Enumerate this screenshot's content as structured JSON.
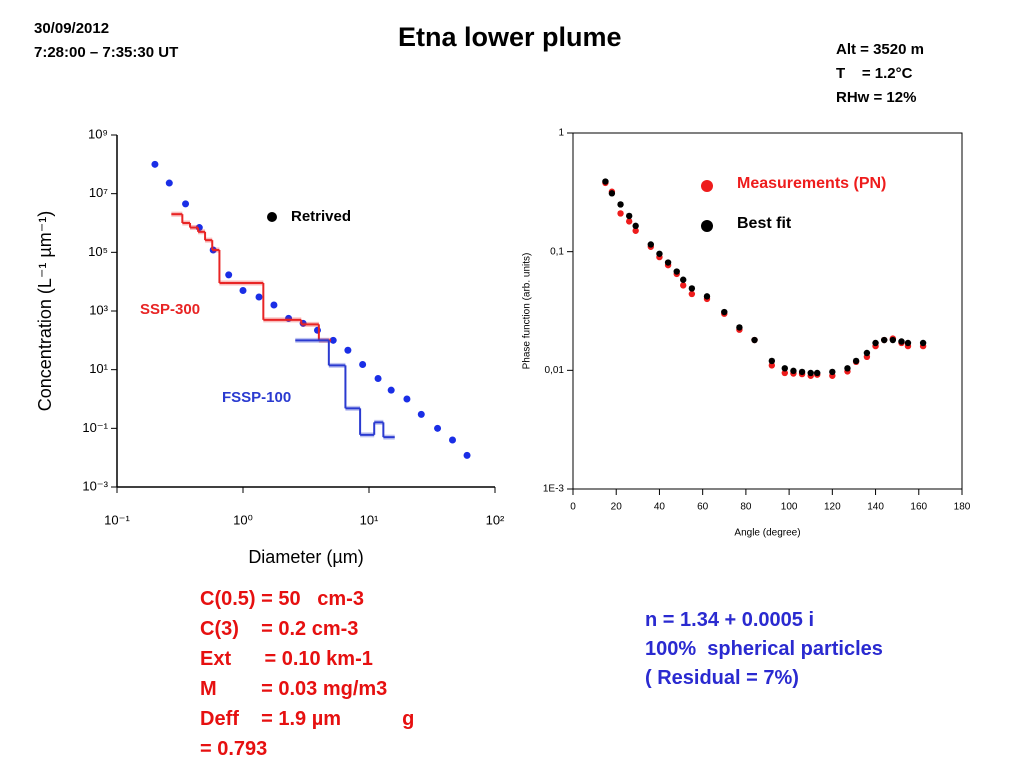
{
  "header": {
    "date": "30/09/2012",
    "time": "7:28:00 – 7:35:30 UT",
    "title": "Etna lower plume",
    "conditions": [
      "Alt = 3520 m",
      "T    = 1.2°C",
      "RHw = 12%"
    ]
  },
  "results_left": [
    "C(0.5) = 50   cm-3",
    "C(3)    = 0.2 cm-3",
    "Ext      = 0.10 km-1",
    "M        = 0.03 mg/m3",
    "Deff    = 1.9 µm           g",
    "= 0.793"
  ],
  "results_right": [
    "n = 1.34 + 0.0005 i",
    "100%  spherical particles",
    "( Residual = 7%)"
  ],
  "chart_data": [
    {
      "type": "scatter",
      "xlog": true,
      "ylog": true,
      "xlabel": "Diameter (µm)",
      "ylabel": "Concentration (L⁻¹ µm⁻¹)",
      "xlim": [
        0.1,
        100
      ],
      "ylim": [
        0.001,
        1000000000
      ],
      "xticks": [
        {
          "value": 0.1,
          "label": "10⁻¹"
        },
        {
          "value": 1,
          "label": "10⁰"
        },
        {
          "value": 10,
          "label": "10¹"
        },
        {
          "value": 100,
          "label": "10²"
        }
      ],
      "yticks": [
        {
          "value": 0.001,
          "label": "10⁻³"
        },
        {
          "value": 0.1,
          "label": "10⁻¹"
        },
        {
          "value": 10,
          "label": "10¹"
        },
        {
          "value": 1000,
          "label": "10³"
        },
        {
          "value": 100000,
          "label": "10⁵"
        },
        {
          "value": 10000000,
          "label": "10⁷"
        },
        {
          "value": 1000000000,
          "label": "10⁹"
        }
      ],
      "legend_color": "#000000",
      "series": [
        {
          "name": "Retrived",
          "color": "#1a2ee6",
          "x": [
            0.2,
            0.26,
            0.35,
            0.45,
            0.58,
            0.77,
            1.0,
            1.34,
            1.76,
            2.3,
            3.0,
            3.9,
            5.2,
            6.8,
            8.9,
            11.8,
            15,
            20,
            26,
            35,
            46,
            60
          ],
          "values": [
            100000000,
            23000000,
            4500000,
            700000,
            120000,
            17000,
            5000,
            3000,
            1600,
            560,
            380,
            220,
            100,
            46,
            15,
            5,
            2,
            1.0,
            0.3,
            0.1,
            0.04,
            0.012
          ]
        },
        {
          "name": "SSP-300",
          "color": "#e82424",
          "style": "step",
          "bins": [
            0.27,
            0.33,
            0.38,
            0.44,
            0.5,
            0.57,
            0.65,
            0.72,
            1.45,
            2.9,
            4.0,
            5.0
          ],
          "values": [
            2000000,
            1000000,
            700000,
            500000,
            260000,
            120000,
            9000,
            9000,
            500,
            350,
            100
          ]
        },
        {
          "name": "FSSP-100",
          "color": "#2a3ad0",
          "style": "step",
          "bins": [
            2.6,
            4.8,
            6.5,
            8.5,
            11,
            13,
            16
          ],
          "values": [
            100,
            14,
            0.48,
            0.06,
            0.16,
            0.05
          ]
        }
      ]
    },
    {
      "type": "scatter",
      "xlog": false,
      "ylog": true,
      "box": true,
      "xlabel": "Angle (degree)",
      "ylabel": "Phase function (arb. units)",
      "xlim": [
        0,
        180
      ],
      "ylim": [
        0.001,
        1
      ],
      "xticks": [
        0,
        20,
        40,
        60,
        80,
        100,
        120,
        140,
        160,
        180
      ],
      "yticks": [
        {
          "value": 0.001,
          "label": "1E-3"
        },
        {
          "value": 0.01,
          "label": "0,01"
        },
        {
          "value": 0.1,
          "label": "0,1"
        },
        1
      ],
      "series": [
        {
          "name": "Measurements (PN)",
          "color": "#ee1c1c",
          "x": [
            15,
            18,
            22,
            26,
            29,
            36,
            40,
            44,
            48,
            51,
            55,
            62,
            70,
            77,
            84,
            92,
            98,
            102,
            106,
            110,
            113,
            120,
            127,
            131,
            136,
            140,
            144,
            148,
            152,
            155,
            162
          ],
          "values": [
            0.38,
            0.32,
            0.21,
            0.18,
            0.15,
            0.11,
            0.09,
            0.077,
            0.065,
            0.052,
            0.044,
            0.04,
            0.03,
            0.022,
            0.018,
            0.011,
            0.0095,
            0.0094,
            0.0093,
            0.009,
            0.0092,
            0.009,
            0.0098,
            0.0118,
            0.013,
            0.016,
            0.018,
            0.0185,
            0.017,
            0.016,
            0.016
          ]
        },
        {
          "name": "Best fit",
          "color": "#000000",
          "x": [
            15,
            18,
            22,
            26,
            29,
            36,
            40,
            44,
            48,
            51,
            55,
            62,
            70,
            77,
            84,
            92,
            98,
            102,
            106,
            110,
            113,
            120,
            127,
            131,
            136,
            140,
            144,
            148,
            152,
            155,
            162
          ],
          "values": [
            0.39,
            0.31,
            0.25,
            0.2,
            0.165,
            0.115,
            0.096,
            0.081,
            0.068,
            0.058,
            0.049,
            0.042,
            0.031,
            0.023,
            0.018,
            0.012,
            0.0104,
            0.0099,
            0.0097,
            0.0095,
            0.0095,
            0.0097,
            0.0104,
            0.012,
            0.014,
            0.017,
            0.018,
            0.018,
            0.0175,
            0.017,
            0.017
          ]
        }
      ]
    }
  ]
}
